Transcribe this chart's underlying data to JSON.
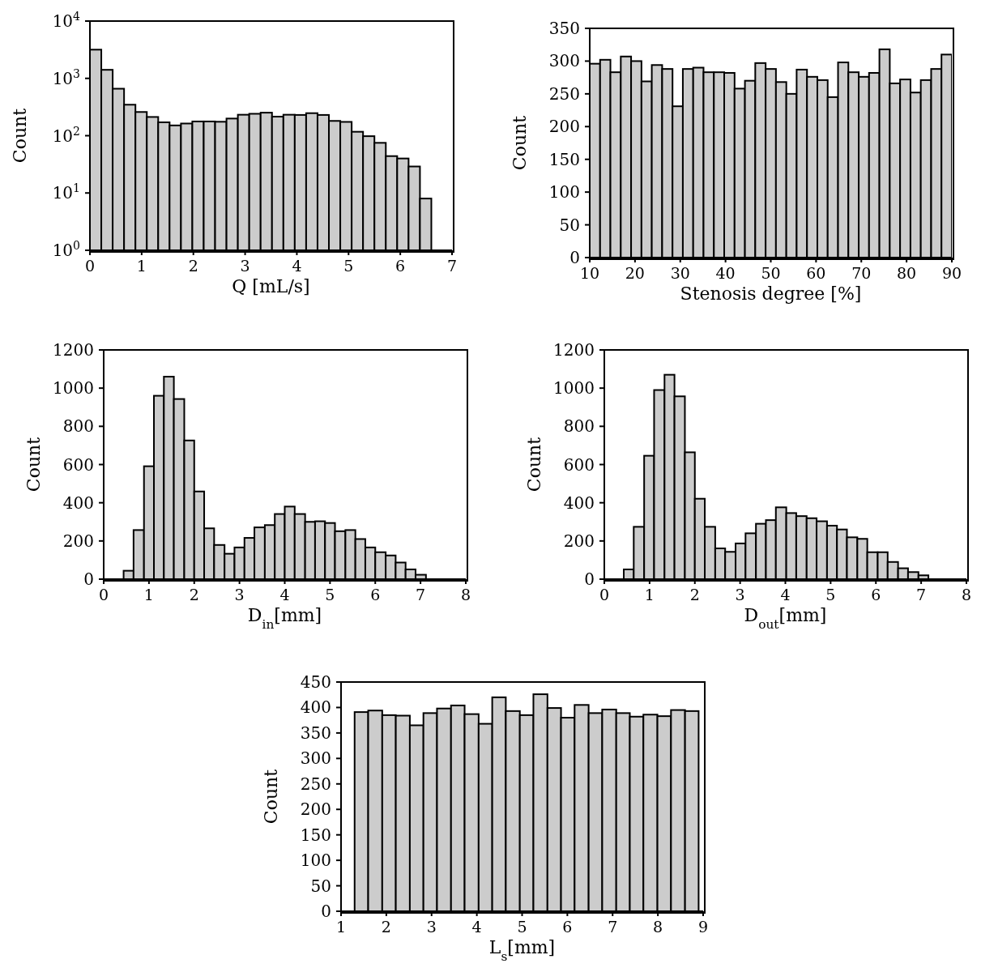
{
  "chart_data": [
    {
      "type": "histogram",
      "xlabel": "Q [mL/s]",
      "ylabel": "Count",
      "color": "#cccccc",
      "log": "y",
      "bins": [
        0,
        0.22,
        0.44,
        0.66,
        0.88,
        1.1,
        1.32,
        1.54,
        1.76,
        1.98,
        2.2,
        2.42,
        2.64,
        2.86,
        3.08,
        3.3,
        3.52,
        3.74,
        3.96,
        4.18,
        4.4,
        4.62,
        4.84,
        5.06,
        5.28,
        5.5,
        5.72,
        5.94,
        6.16,
        6.38,
        6.6
      ],
      "values": [
        3170,
        1410,
        660,
        347,
        259,
        212,
        171,
        151,
        163,
        177,
        177,
        175,
        199,
        232,
        241,
        252,
        215,
        232,
        230,
        247,
        230,
        181,
        174,
        117,
        98,
        75,
        44,
        40,
        29,
        8
      ],
      "xlim": [
        0,
        7
      ],
      "xticks": [
        0,
        1,
        2,
        3,
        4,
        5,
        6,
        7
      ],
      "ylim": [
        1,
        10000
      ],
      "yticks": [
        {
          "value": 1,
          "label": "10$^{0}$"
        },
        {
          "value": 10,
          "label": "10$^{1}$"
        },
        {
          "value": 100,
          "label": "10$^{2}$"
        },
        {
          "value": 1000,
          "label": "10$^{3}$"
        },
        {
          "value": 10000,
          "label": "10$^{4}$"
        }
      ]
    },
    {
      "type": "histogram",
      "xlabel": "Stenosis degree [%]",
      "ylabel": "Count",
      "color": "#cccccc",
      "bins": [
        10,
        12.29,
        14.57,
        16.86,
        19.14,
        21.43,
        23.71,
        26,
        28.29,
        30.57,
        32.86,
        35.14,
        37.43,
        39.71,
        42,
        44.29,
        46.57,
        48.86,
        51.14,
        53.43,
        55.71,
        58,
        60.29,
        62.57,
        64.86,
        67.14,
        69.43,
        71.71,
        74,
        76.29,
        78.57,
        80.86,
        83.14,
        85.43,
        87.71,
        90
      ],
      "values": [
        296,
        302,
        283,
        307,
        300,
        269,
        294,
        288,
        231,
        288,
        290,
        283,
        283,
        282,
        258,
        270,
        297,
        288,
        268,
        250,
        287,
        276,
        271,
        245,
        298,
        283,
        276,
        282,
        318,
        266,
        272,
        252,
        271,
        288,
        310
      ],
      "xlim": [
        10,
        90
      ],
      "xticks": [
        10,
        20,
        30,
        40,
        50,
        60,
        70,
        80,
        90
      ],
      "ylim": [
        0,
        350
      ],
      "yticks": [
        0,
        50,
        100,
        150,
        200,
        250,
        300,
        350
      ]
    },
    {
      "type": "histogram",
      "xlabel": "D$_{in}$[mm]",
      "ylabel": "Count",
      "color": "#cccccc",
      "bins": [
        0.44,
        0.66,
        0.89,
        1.11,
        1.33,
        1.55,
        1.78,
        2.0,
        2.22,
        2.44,
        2.67,
        2.89,
        3.11,
        3.33,
        3.56,
        3.78,
        4.0,
        4.22,
        4.45,
        4.67,
        4.89,
        5.11,
        5.34,
        5.56,
        5.78,
        6.0,
        6.23,
        6.45,
        6.67,
        6.89,
        7.12
      ],
      "values": [
        44,
        257,
        591,
        960,
        1060,
        943,
        726,
        459,
        266,
        179,
        133,
        166,
        216,
        271,
        283,
        341,
        380,
        341,
        300,
        303,
        294,
        251,
        257,
        210,
        166,
        141,
        124,
        87,
        51,
        23
      ],
      "xlim": [
        0,
        8
      ],
      "xticks": [
        0,
        1,
        2,
        3,
        4,
        5,
        6,
        7,
        8
      ],
      "ylim": [
        0,
        1200
      ],
      "yticks": [
        0,
        200,
        400,
        600,
        800,
        1000,
        1200
      ]
    },
    {
      "type": "histogram",
      "xlabel": "D$_{out}$[mm]",
      "ylabel": "Count",
      "color": "#cccccc",
      "bins": [
        0.43,
        0.65,
        0.88,
        1.1,
        1.33,
        1.55,
        1.78,
        2.0,
        2.22,
        2.45,
        2.67,
        2.9,
        3.12,
        3.35,
        3.57,
        3.79,
        4.02,
        4.24,
        4.47,
        4.69,
        4.92,
        5.14,
        5.36,
        5.59,
        5.81,
        6.04,
        6.26,
        6.49,
        6.71,
        6.94,
        7.16
      ],
      "values": [
        51,
        274,
        646,
        990,
        1070,
        957,
        664,
        421,
        274,
        161,
        143,
        187,
        240,
        290,
        309,
        376,
        346,
        330,
        319,
        303,
        280,
        260,
        219,
        211,
        141,
        141,
        90,
        57,
        37,
        20
      ],
      "xlim": [
        0,
        8
      ],
      "xticks": [
        0,
        1,
        2,
        3,
        4,
        5,
        6,
        7,
        8
      ],
      "ylim": [
        0,
        1200
      ],
      "yticks": [
        0,
        200,
        400,
        600,
        800,
        1000,
        1200
      ]
    },
    {
      "type": "histogram",
      "xlabel": "L$_{s}$[mm]",
      "ylabel": "Count",
      "color": "#cccccc",
      "bins": [
        1.3,
        1.6,
        1.91,
        2.21,
        2.52,
        2.82,
        3.12,
        3.43,
        3.73,
        4.04,
        4.34,
        4.64,
        4.95,
        5.25,
        5.56,
        5.86,
        6.16,
        6.47,
        6.77,
        7.08,
        7.38,
        7.68,
        7.99,
        8.29,
        8.6,
        8.9
      ],
      "values": [
        391,
        394,
        385,
        384,
        365,
        389,
        398,
        404,
        387,
        368,
        420,
        393,
        385,
        426,
        399,
        380,
        405,
        389,
        396,
        389,
        382,
        386,
        383,
        395,
        393
      ],
      "xlim": [
        1,
        9
      ],
      "xticks": [
        1,
        2,
        3,
        4,
        5,
        6,
        7,
        8,
        9
      ],
      "ylim": [
        0,
        450
      ],
      "yticks": [
        0,
        50,
        100,
        150,
        200,
        250,
        300,
        350,
        400,
        450
      ]
    }
  ]
}
